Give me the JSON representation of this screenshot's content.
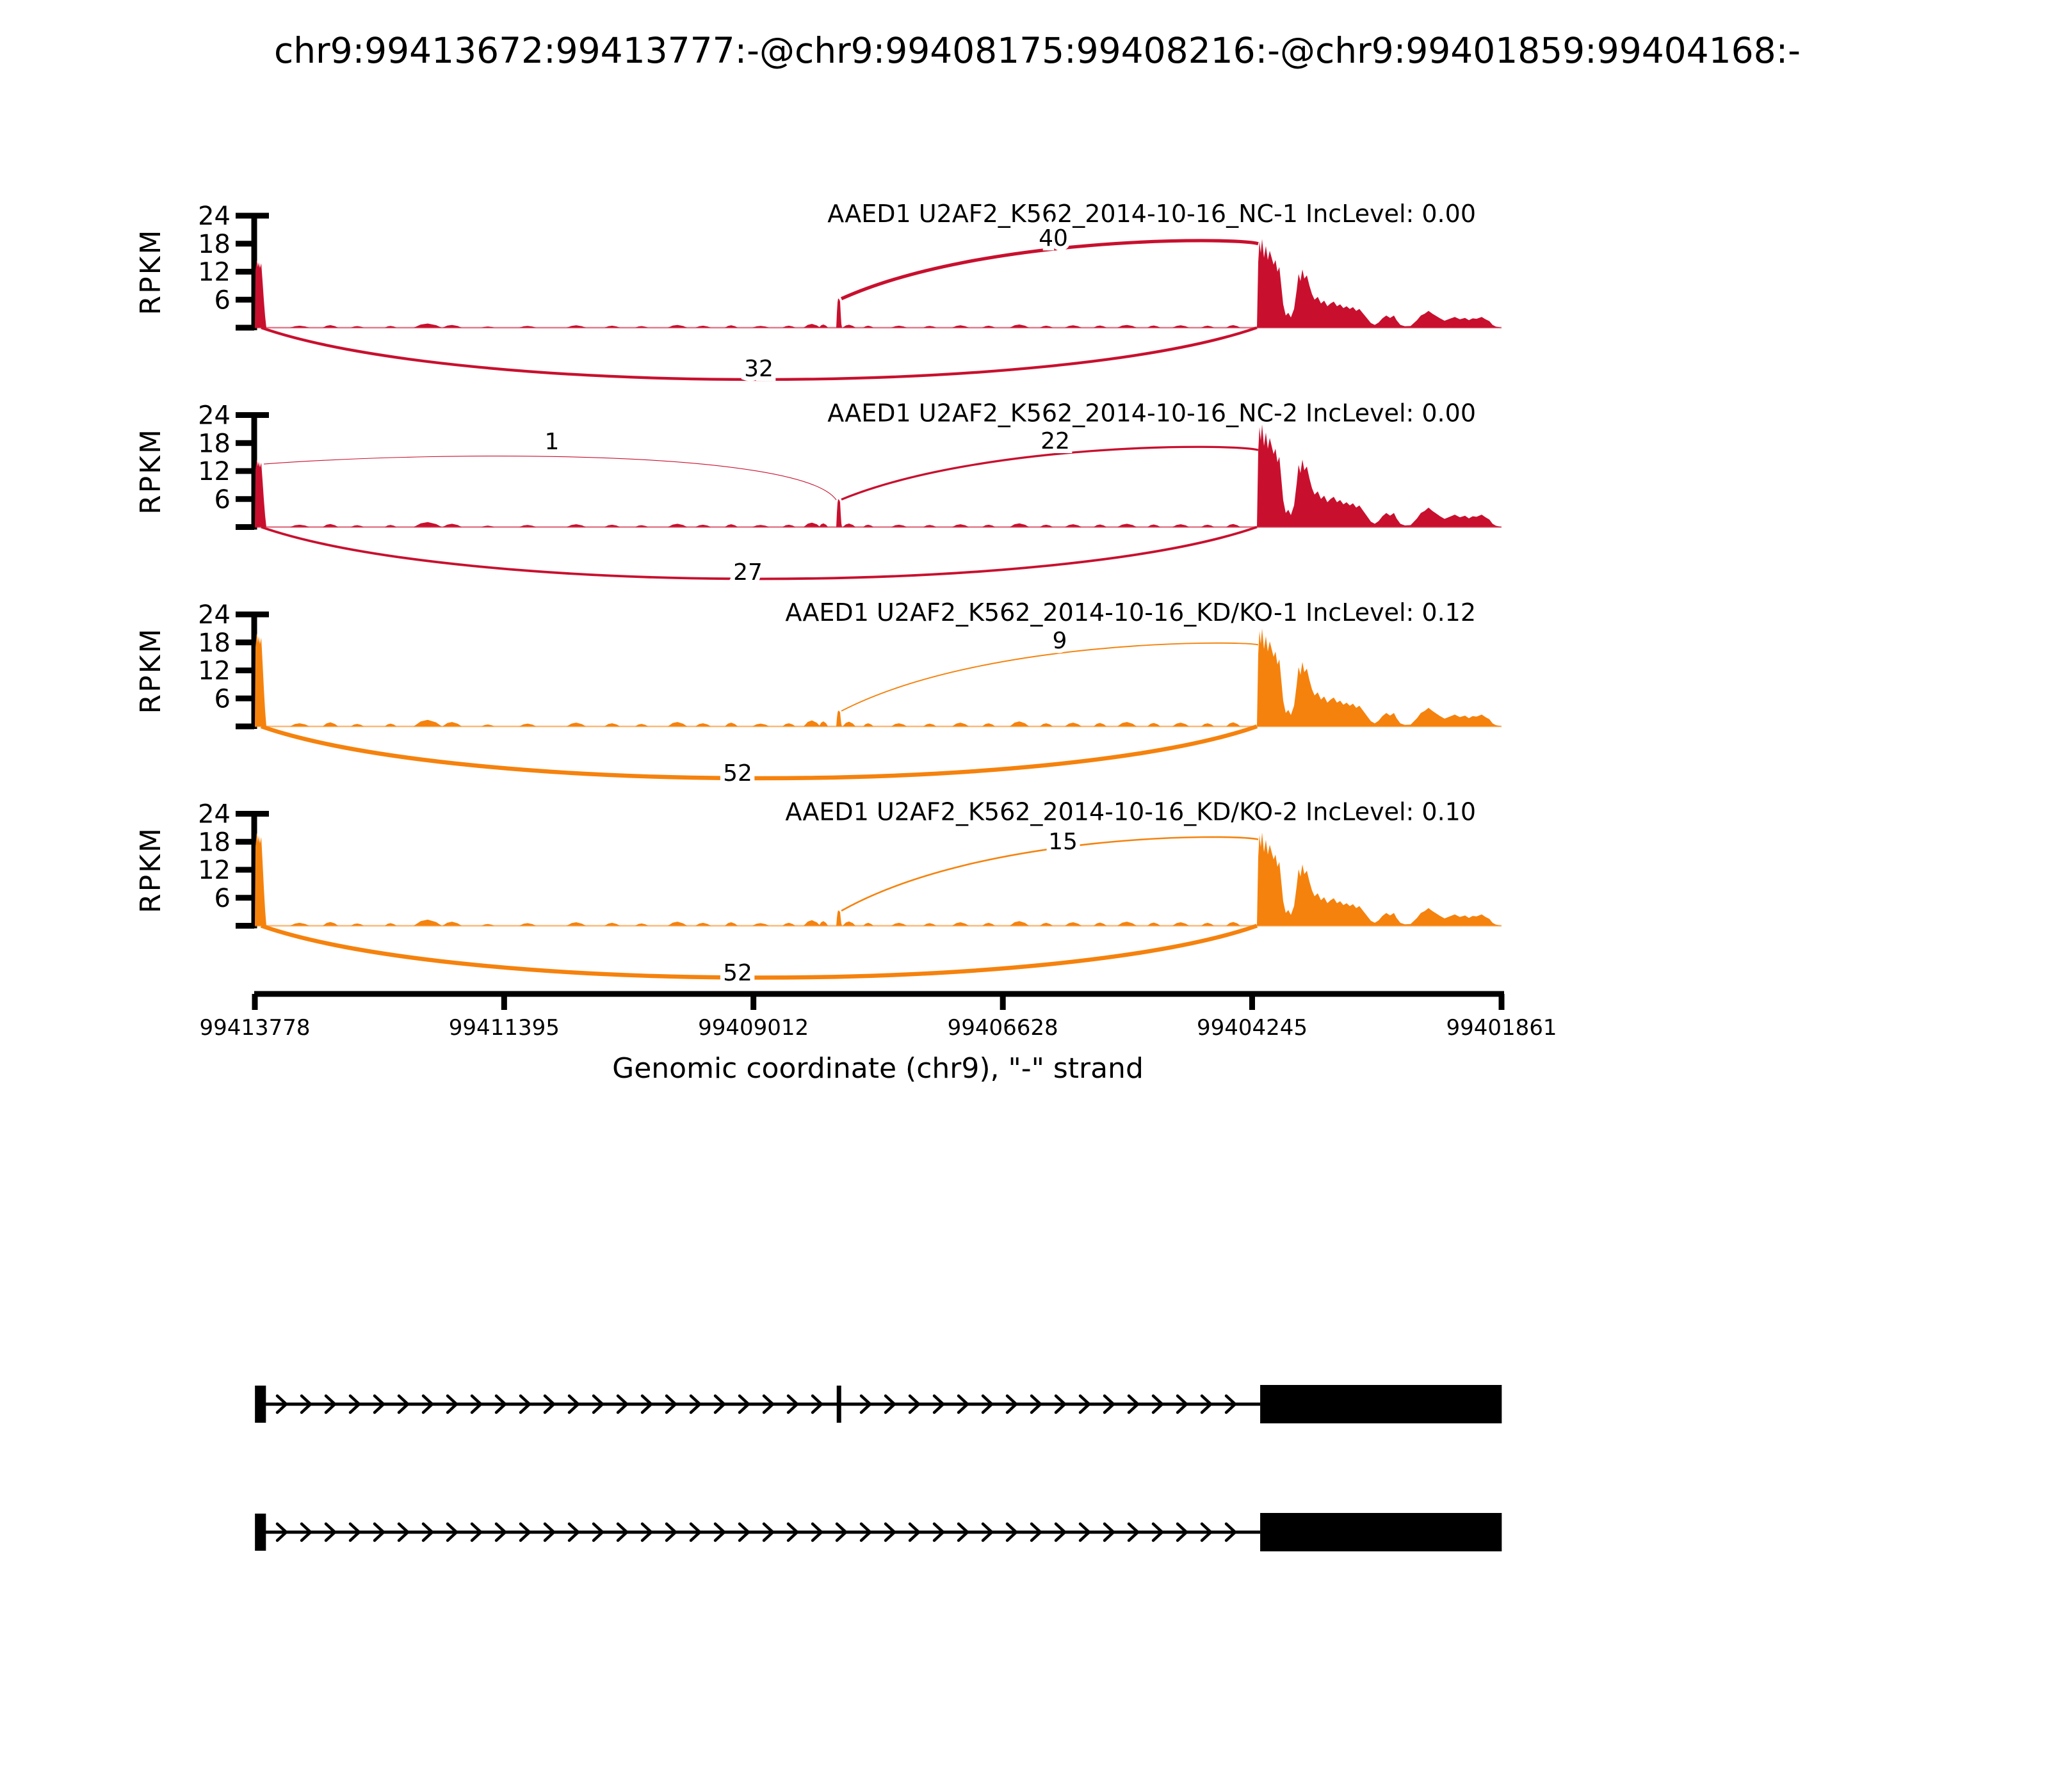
{
  "title": "chr9:99413672:99413777:-@chr9:99408175:99408216:-@chr9:99401859:99404168:-",
  "chart_data": {
    "type": "sashimi",
    "gene": "AAED1",
    "xlabel": "Genomic coordinate (chr9), \"-\" strand",
    "ylabel": "RPKM",
    "strand": "-",
    "ymax": 24,
    "yticks": [
      24,
      18,
      12,
      6
    ],
    "x_ticks": [
      {
        "label": "99413778",
        "coord": 99413778
      },
      {
        "label": "99411395",
        "coord": 99411395
      },
      {
        "label": "99409012",
        "coord": 99409012
      },
      {
        "label": "99406628",
        "coord": 99406628
      },
      {
        "label": "99404245",
        "coord": 99404245
      },
      {
        "label": "99401861",
        "coord": 99401861
      }
    ],
    "x_range": {
      "left": 99413778,
      "right": 99401861
    },
    "exons": {
      "up": {
        "start": 99413672,
        "end": 99413777
      },
      "mid": {
        "start": 99408175,
        "end": 99408216
      },
      "down": {
        "start": 99401859,
        "end": 99404168
      }
    },
    "transcripts": [
      {
        "exons": [
          "up",
          "mid",
          "down"
        ]
      },
      {
        "exons": [
          "up",
          "down"
        ]
      }
    ],
    "tracks": [
      {
        "label": "AAED1 U2AF2_K562_2014-10-16_NC-1 IncLevel: 0.00",
        "inc_level": "0.00",
        "color": "#c8102e",
        "peaks": {
          "left": 14.5,
          "mid": 6.3,
          "cluster": 19.0,
          "noise": 0.85
        },
        "junctions": [
          {
            "count": 40,
            "from": "mid",
            "to": "down",
            "side": "top",
            "start_rpkm": 6.2,
            "end_rpkm": 18.0,
            "apex_rpkm": 19.5,
            "label_x": 1645,
            "label_y": 384
          },
          {
            "count": 32,
            "from": "up",
            "to": "down",
            "side": "bottom",
            "label_x": 1185,
            "label_y": 588
          }
        ]
      },
      {
        "label": "AAED1 U2AF2_K562_2014-10-16_NC-2 IncLevel: 0.00",
        "inc_level": "0.00",
        "color": "#c8102e",
        "peaks": {
          "left": 14.5,
          "mid": 6.0,
          "cluster": 22.0,
          "noise": 1.0
        },
        "junctions": [
          {
            "count": 1,
            "from": "up",
            "to": "mid",
            "side": "top",
            "start_rpkm": 13.5,
            "end_rpkm": 5.8,
            "apex_rpkm": 16.5,
            "label_x": 862,
            "label_y": 702
          },
          {
            "count": 22,
            "from": "mid",
            "to": "down",
            "side": "top",
            "start_rpkm": 5.9,
            "end_rpkm": 16.5,
            "apex_rpkm": 18.0,
            "label_x": 1648,
            "label_y": 701
          },
          {
            "count": 27,
            "from": "up",
            "to": "down",
            "side": "bottom",
            "label_x": 1168,
            "label_y": 906
          }
        ]
      },
      {
        "label": "AAED1 U2AF2_K562_2014-10-16_KD/KO-1 IncLevel: 0.12",
        "inc_level": "0.12",
        "color": "#f5820d",
        "peaks": {
          "left": 20.0,
          "mid": 3.4,
          "cluster": 21.0,
          "noise": 1.35
        },
        "junctions": [
          {
            "count": 9,
            "from": "mid",
            "to": "down",
            "side": "top",
            "start_rpkm": 3.3,
            "end_rpkm": 17.5,
            "apex_rpkm": 18.5,
            "label_x": 1655,
            "label_y": 1013
          },
          {
            "count": 52,
            "from": "up",
            "to": "down",
            "side": "bottom",
            "label_x": 1152,
            "label_y": 1220
          }
        ]
      },
      {
        "label": "AAED1 U2AF2_K562_2014-10-16_KD/KO-2 IncLevel: 0.10",
        "inc_level": "0.10",
        "color": "#f5820d",
        "peaks": {
          "left": 20.0,
          "mid": 3.3,
          "cluster": 20.0,
          "noise": 1.25
        },
        "junctions": [
          {
            "count": 15,
            "from": "mid",
            "to": "down",
            "side": "top",
            "start_rpkm": 3.2,
            "end_rpkm": 18.5,
            "apex_rpkm": 19.8,
            "label_x": 1660,
            "label_y": 1327
          },
          {
            "count": 52,
            "from": "up",
            "to": "down",
            "side": "bottom",
            "label_x": 1152,
            "label_y": 1532
          }
        ]
      }
    ]
  }
}
